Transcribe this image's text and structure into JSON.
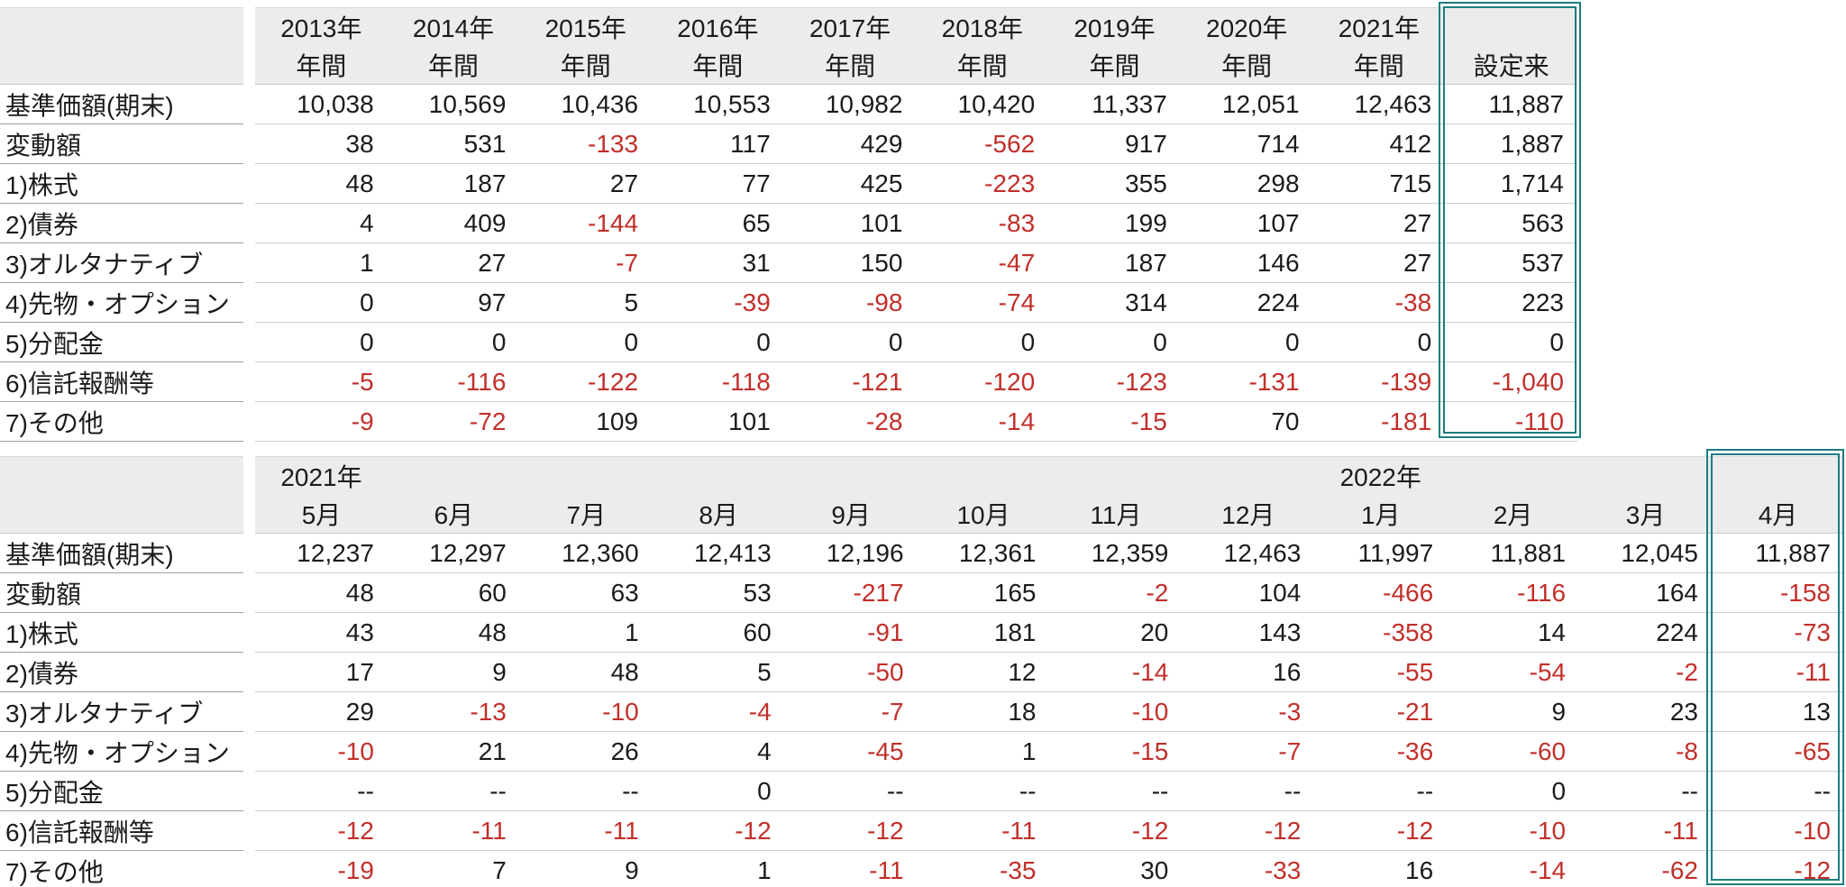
{
  "colors": {
    "text": "#1b1b1b",
    "negative_value": "#c22f2a",
    "header_background": "#ececec",
    "highlight_border": "#1e7d80",
    "label_rule": "#a0a0a0",
    "data_rule": "#cdcdcd"
  },
  "annual_table": {
    "corner_label": "",
    "highlight_column_header": "設定来",
    "columns": [
      {
        "top": "2013年",
        "bottom": "年間"
      },
      {
        "top": "2014年",
        "bottom": "年間"
      },
      {
        "top": "2015年",
        "bottom": "年間"
      },
      {
        "top": "2016年",
        "bottom": "年間"
      },
      {
        "top": "2017年",
        "bottom": "年間"
      },
      {
        "top": "2018年",
        "bottom": "年間"
      },
      {
        "top": "2019年",
        "bottom": "年間"
      },
      {
        "top": "2020年",
        "bottom": "年間"
      },
      {
        "top": "2021年",
        "bottom": "年間"
      },
      {
        "top": "",
        "bottom": "設定来"
      }
    ],
    "rows": [
      {
        "label": "基準価額(期末)",
        "values": [
          "10,038",
          "10,569",
          "10,436",
          "10,553",
          "10,982",
          "10,420",
          "11,337",
          "12,051",
          "12,463",
          "11,887"
        ]
      },
      {
        "label": "変動額",
        "values": [
          "38",
          "531",
          "-133",
          "117",
          "429",
          "-562",
          "917",
          "714",
          "412",
          "1,887"
        ]
      },
      {
        "label": "1)株式",
        "values": [
          "48",
          "187",
          "27",
          "77",
          "425",
          "-223",
          "355",
          "298",
          "715",
          "1,714"
        ]
      },
      {
        "label": "2)債券",
        "values": [
          "4",
          "409",
          "-144",
          "65",
          "101",
          "-83",
          "199",
          "107",
          "27",
          "563"
        ]
      },
      {
        "label": "3)オルタナティブ",
        "values": [
          "1",
          "27",
          "-7",
          "31",
          "150",
          "-47",
          "187",
          "146",
          "27",
          "537"
        ]
      },
      {
        "label": "4)先物・オプション",
        "values": [
          "0",
          "97",
          "5",
          "-39",
          "-98",
          "-74",
          "314",
          "224",
          "-38",
          "223"
        ]
      },
      {
        "label": "5)分配金",
        "values": [
          "0",
          "0",
          "0",
          "0",
          "0",
          "0",
          "0",
          "0",
          "0",
          "0"
        ]
      },
      {
        "label": "6)信託報酬等",
        "values": [
          "-5",
          "-116",
          "-122",
          "-118",
          "-121",
          "-120",
          "-123",
          "-131",
          "-139",
          "-1,040"
        ]
      },
      {
        "label": "7)その他",
        "values": [
          "-9",
          "-72",
          "109",
          "101",
          "-28",
          "-14",
          "-15",
          "70",
          "-181",
          "-110"
        ]
      }
    ]
  },
  "monthly_table": {
    "corner_label": "",
    "highlight_column_header": "4月",
    "columns": [
      {
        "top": "2021年",
        "bottom": "5月"
      },
      {
        "top": "",
        "bottom": "6月"
      },
      {
        "top": "",
        "bottom": "7月"
      },
      {
        "top": "",
        "bottom": "8月"
      },
      {
        "top": "",
        "bottom": "9月"
      },
      {
        "top": "",
        "bottom": "10月"
      },
      {
        "top": "",
        "bottom": "11月"
      },
      {
        "top": "",
        "bottom": "12月"
      },
      {
        "top": "2022年",
        "bottom": "1月"
      },
      {
        "top": "",
        "bottom": "2月"
      },
      {
        "top": "",
        "bottom": "3月"
      },
      {
        "top": "",
        "bottom": "4月"
      }
    ],
    "rows": [
      {
        "label": "基準価額(期末)",
        "values": [
          "12,237",
          "12,297",
          "12,360",
          "12,413",
          "12,196",
          "12,361",
          "12,359",
          "12,463",
          "11,997",
          "11,881",
          "12,045",
          "11,887"
        ]
      },
      {
        "label": "変動額",
        "values": [
          "48",
          "60",
          "63",
          "53",
          "-217",
          "165",
          "-2",
          "104",
          "-466",
          "-116",
          "164",
          "-158"
        ]
      },
      {
        "label": "1)株式",
        "values": [
          "43",
          "48",
          "1",
          "60",
          "-91",
          "181",
          "20",
          "143",
          "-358",
          "14",
          "224",
          "-73"
        ]
      },
      {
        "label": "2)債券",
        "values": [
          "17",
          "9",
          "48",
          "5",
          "-50",
          "12",
          "-14",
          "16",
          "-55",
          "-54",
          "-2",
          "-11"
        ]
      },
      {
        "label": "3)オルタナティブ",
        "values": [
          "29",
          "-13",
          "-10",
          "-4",
          "-7",
          "18",
          "-10",
          "-3",
          "-21",
          "9",
          "23",
          "13"
        ]
      },
      {
        "label": "4)先物・オプション",
        "values": [
          "-10",
          "21",
          "26",
          "4",
          "-45",
          "1",
          "-15",
          "-7",
          "-36",
          "-60",
          "-8",
          "-65"
        ]
      },
      {
        "label": "5)分配金",
        "values": [
          "--",
          "--",
          "--",
          "0",
          "--",
          "--",
          "--",
          "--",
          "--",
          "0",
          "--",
          "--"
        ]
      },
      {
        "label": "6)信託報酬等",
        "values": [
          "-12",
          "-11",
          "-11",
          "-12",
          "-12",
          "-11",
          "-12",
          "-12",
          "-12",
          "-10",
          "-11",
          "-10"
        ]
      },
      {
        "label": "7)その他",
        "values": [
          "-19",
          "7",
          "9",
          "1",
          "-11",
          "-35",
          "30",
          "-33",
          "16",
          "-14",
          "-62",
          "-12"
        ]
      }
    ]
  }
}
